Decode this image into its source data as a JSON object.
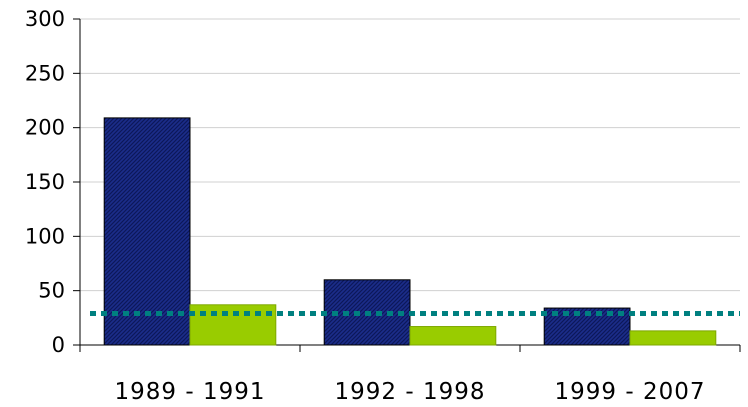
{
  "chart_data": {
    "type": "bar",
    "title": "",
    "xlabel": "",
    "ylabel": "",
    "categories": [
      "1989 - 1991",
      "1992 - 1998",
      "1999 - 2007"
    ],
    "series": [
      {
        "values": [
          209,
          60,
          34
        ],
        "color": "#1b2d8a",
        "pattern": "diagonal-hatch"
      },
      {
        "values": [
          37,
          17,
          13
        ],
        "color": "#99cc00"
      }
    ],
    "reference_line": {
      "value": 29,
      "style": "dotted",
      "color": "#008080"
    },
    "ylim": [
      0,
      300
    ],
    "yticks": [
      0,
      50,
      100,
      150,
      200,
      250,
      300
    ],
    "grid": true,
    "legend": "none"
  }
}
